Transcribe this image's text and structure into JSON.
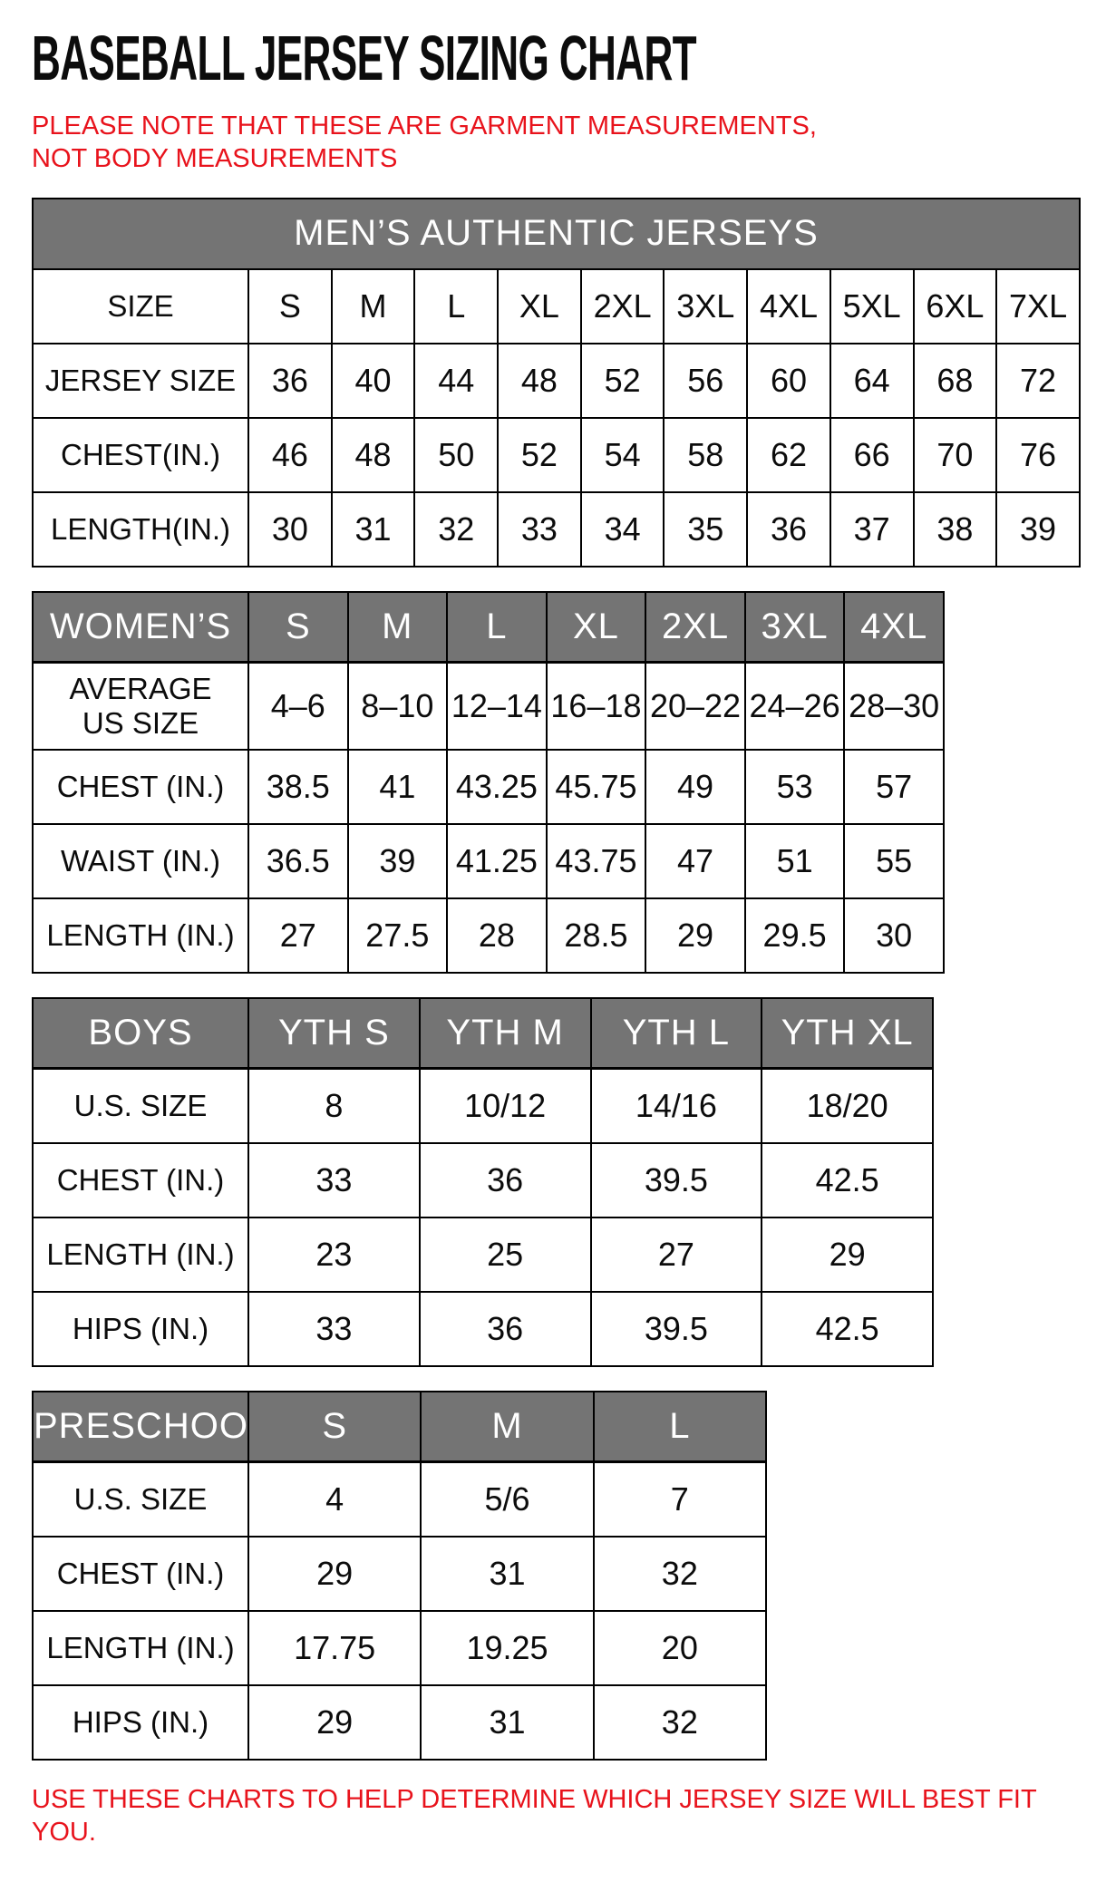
{
  "page": {
    "title": "BASEBALL JERSEY SIZING CHART",
    "note_top": "PLEASE NOTE THAT THESE ARE GARMENT MEASUREMENTS, NOT BODY MEASUREMENTS",
    "note_bottom": "USE THESE CHARTS TO HELP DETERMINE WHICH JERSEY SIZE WILL BEST FIT YOU.",
    "colors": {
      "accent_red": "#e8131c",
      "header_gray": "#747474",
      "border_black": "#000000"
    }
  },
  "tables": [
    {
      "id": "mens",
      "title": "MEN’S AUTHENTIC JERSEYS",
      "columns": {
        "label": "SIZE",
        "values": [
          "S",
          "M",
          "L",
          "XL",
          "2XL",
          "3XL",
          "4XL",
          "5XL",
          "6XL",
          "7XL"
        ]
      },
      "rows": [
        {
          "label": "JERSEY SIZE",
          "values": [
            "36",
            "40",
            "44",
            "48",
            "52",
            "56",
            "60",
            "64",
            "68",
            "72"
          ]
        },
        {
          "label": "CHEST(IN.)",
          "values": [
            "46",
            "48",
            "50",
            "52",
            "54",
            "58",
            "62",
            "66",
            "70",
            "76"
          ]
        },
        {
          "label": "LENGTH(IN.)",
          "values": [
            "30",
            "31",
            "32",
            "33",
            "34",
            "35",
            "36",
            "37",
            "38",
            "39"
          ]
        }
      ]
    },
    {
      "id": "womens",
      "columns": {
        "label": "WOMEN’S",
        "values": [
          "S",
          "M",
          "L",
          "XL",
          "2XL",
          "3XL",
          "4XL"
        ]
      },
      "rows": [
        {
          "label": "AVERAGE US SIZE",
          "values": [
            "4–6",
            "8–10",
            "12–14",
            "16–18",
            "20–22",
            "24–26",
            "28–30"
          ]
        },
        {
          "label": "CHEST (IN.)",
          "values": [
            "38.5",
            "41",
            "43.25",
            "45.75",
            "49",
            "53",
            "57"
          ]
        },
        {
          "label": "WAIST (IN.)",
          "values": [
            "36.5",
            "39",
            "41.25",
            "43.75",
            "47",
            "51",
            "55"
          ]
        },
        {
          "label": "LENGTH (IN.)",
          "values": [
            "27",
            "27.5",
            "28",
            "28.5",
            "29",
            "29.5",
            "30"
          ]
        }
      ]
    },
    {
      "id": "boys",
      "columns": {
        "label": "BOYS",
        "values": [
          "YTH S",
          "YTH M",
          "YTH L",
          "YTH XL"
        ]
      },
      "rows": [
        {
          "label": "U.S. SIZE",
          "values": [
            "8",
            "10/12",
            "14/16",
            "18/20"
          ]
        },
        {
          "label": "CHEST (IN.)",
          "values": [
            "33",
            "36",
            "39.5",
            "42.5"
          ]
        },
        {
          "label": "LENGTH (IN.)",
          "values": [
            "23",
            "25",
            "27",
            "29"
          ]
        },
        {
          "label": "HIPS (IN.)",
          "values": [
            "33",
            "36",
            "39.5",
            "42.5"
          ]
        }
      ]
    },
    {
      "id": "preschool",
      "columns": {
        "label": "PRESCHOOL",
        "values": [
          "S",
          "M",
          "L"
        ]
      },
      "rows": [
        {
          "label": "U.S. SIZE",
          "values": [
            "4",
            "5/6",
            "7"
          ]
        },
        {
          "label": "CHEST (IN.)",
          "values": [
            "29",
            "31",
            "32"
          ]
        },
        {
          "label": "LENGTH (IN.)",
          "values": [
            "17.75",
            "19.25",
            "20"
          ]
        },
        {
          "label": "HIPS (IN.)",
          "values": [
            "29",
            "31",
            "32"
          ]
        }
      ]
    }
  ]
}
